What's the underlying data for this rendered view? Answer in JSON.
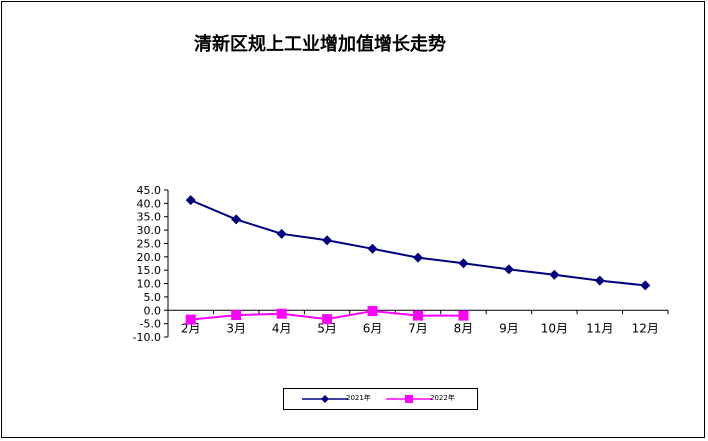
{
  "chart_data": {
    "type": "line",
    "title": "清新区规上工业增加值增长走势",
    "categories": [
      "2月",
      "3月",
      "4月",
      "5月",
      "6月",
      "7月",
      "8月",
      "9月",
      "10月",
      "11月",
      "12月"
    ],
    "series": [
      {
        "name": "2021年",
        "color": "#000080",
        "marker": "diamond",
        "values": [
          41.2,
          34.0,
          28.6,
          26.2,
          23.0,
          19.7,
          17.6,
          15.3,
          13.3,
          11.1,
          9.3
        ]
      },
      {
        "name": "2022年",
        "color": "#FF00FF",
        "marker": "square",
        "values": [
          -3.5,
          -1.8,
          -1.3,
          -3.3,
          -0.3,
          -2.0,
          -2.0,
          null,
          null,
          null,
          null
        ]
      }
    ],
    "ylim": [
      -10,
      45
    ],
    "yticks": [
      "45.0",
      "40.0",
      "35.0",
      "30.0",
      "25.0",
      "20.0",
      "15.0",
      "10.0",
      "5.0",
      "0.0",
      "-5.0",
      "-10.0"
    ],
    "xlabel": "",
    "ylabel": "",
    "grid": false,
    "legend_position": "bottom"
  }
}
